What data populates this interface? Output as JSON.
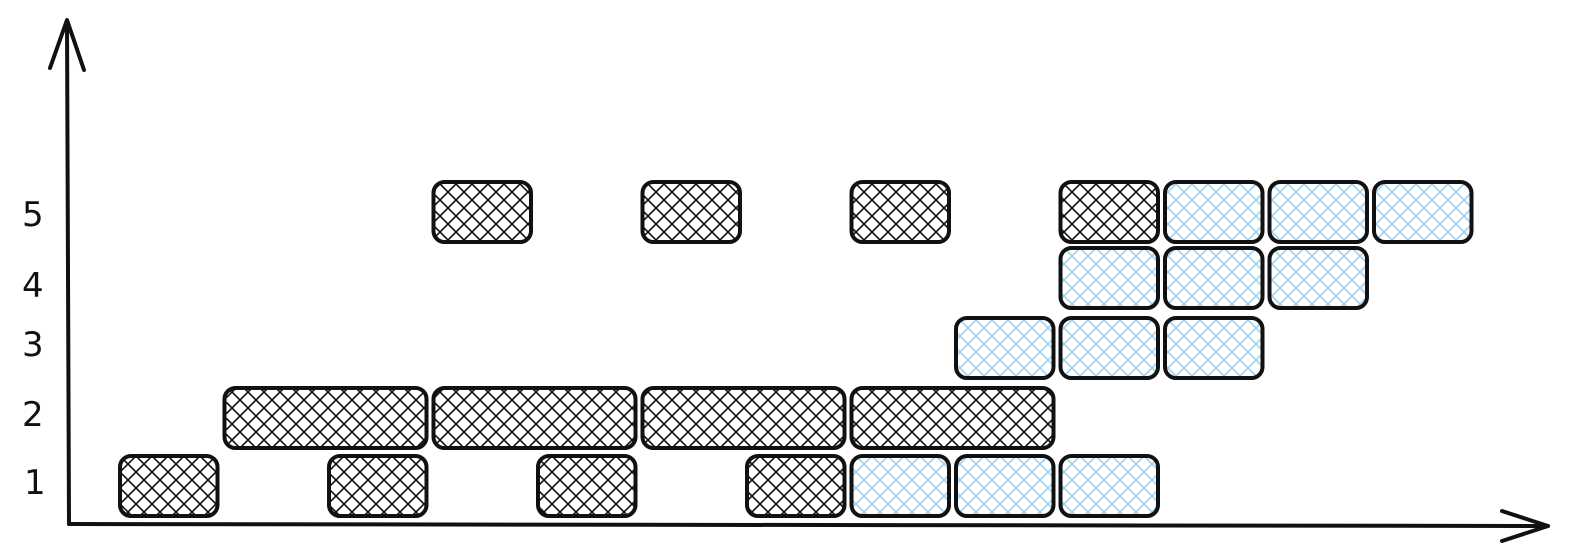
{
  "colors": {
    "stroke": "#111111",
    "dark_hatch": "#111111",
    "blue_hatch": "#9fd0f2",
    "background": "#ffffff"
  },
  "y_axis": {
    "tick_labels": [
      "1",
      "2",
      "3",
      "4",
      "5"
    ]
  },
  "blocks": [
    {
      "row": 1,
      "col": 0,
      "span": 1,
      "style": "dark"
    },
    {
      "row": 1,
      "col": 2,
      "span": 1,
      "style": "dark"
    },
    {
      "row": 1,
      "col": 4,
      "span": 1,
      "style": "dark"
    },
    {
      "row": 1,
      "col": 6,
      "span": 1,
      "style": "dark"
    },
    {
      "row": 1,
      "col": 7,
      "span": 1,
      "style": "blue"
    },
    {
      "row": 1,
      "col": 8,
      "span": 1,
      "style": "blue"
    },
    {
      "row": 1,
      "col": 9,
      "span": 1,
      "style": "blue"
    },
    {
      "row": 2,
      "col": 1,
      "span": 2,
      "style": "dark"
    },
    {
      "row": 2,
      "col": 3,
      "span": 2,
      "style": "dark"
    },
    {
      "row": 2,
      "col": 5,
      "span": 2,
      "style": "dark"
    },
    {
      "row": 2,
      "col": 7,
      "span": 2,
      "style": "dark"
    },
    {
      "row": 3,
      "col": 8,
      "span": 1,
      "style": "blue"
    },
    {
      "row": 3,
      "col": 9,
      "span": 1,
      "style": "blue"
    },
    {
      "row": 3,
      "col": 10,
      "span": 1,
      "style": "blue"
    },
    {
      "row": 4,
      "col": 9,
      "span": 1,
      "style": "blue"
    },
    {
      "row": 4,
      "col": 10,
      "span": 1,
      "style": "blue"
    },
    {
      "row": 4,
      "col": 11,
      "span": 1,
      "style": "blue"
    },
    {
      "row": 5,
      "col": 3,
      "span": 1,
      "style": "dark"
    },
    {
      "row": 5,
      "col": 5,
      "span": 1,
      "style": "dark"
    },
    {
      "row": 5,
      "col": 7,
      "span": 1,
      "style": "dark"
    },
    {
      "row": 5,
      "col": 9,
      "span": 1,
      "style": "dark"
    },
    {
      "row": 5,
      "col": 10,
      "span": 1,
      "style": "blue"
    },
    {
      "row": 5,
      "col": 11,
      "span": 1,
      "style": "blue"
    },
    {
      "row": 5,
      "col": 12,
      "span": 1,
      "style": "blue"
    }
  ]
}
